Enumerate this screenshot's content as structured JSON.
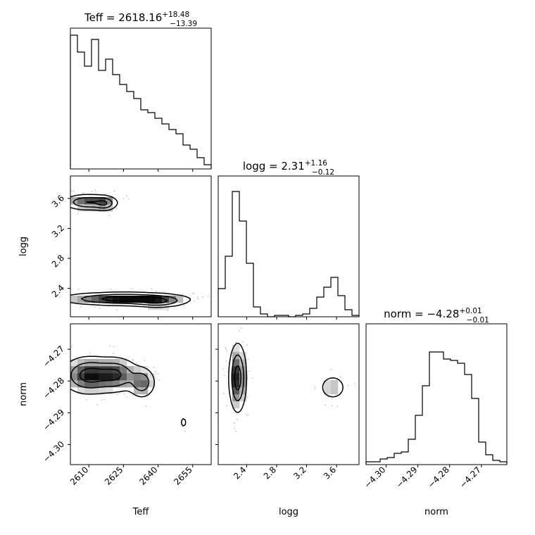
{
  "chart_data": {
    "type": "corner",
    "parameters": [
      {
        "name": "Teff",
        "title_prefix": "Teff = 2618.16",
        "err_plus": "+18.48",
        "err_minus": "−13.39",
        "range": [
          2602,
          2663
        ],
        "ticks": [
          2610,
          2625,
          2640,
          2655
        ],
        "hist_bins": [
          0.95,
          0.83,
          0.73,
          0.92,
          0.7,
          0.78,
          0.67,
          0.6,
          0.55,
          0.5,
          0.42,
          0.4,
          0.36,
          0.32,
          0.28,
          0.25,
          0.17,
          0.14,
          0.08,
          0.03
        ]
      },
      {
        "name": "logg",
        "title_prefix": "logg = 2.31",
        "err_plus": "+1.16",
        "err_minus": "−0.12",
        "range": [
          2.02,
          3.9
        ],
        "ticks": [
          2.4,
          2.8,
          3.2,
          3.6
        ],
        "hist_bins": [
          0.2,
          0.43,
          0.89,
          0.68,
          0.38,
          0.07,
          0.02,
          0.0,
          0.01,
          0.01,
          0.0,
          0.01,
          0.02,
          0.06,
          0.14,
          0.21,
          0.28,
          0.15,
          0.05,
          0.01
        ]
      },
      {
        "name": "norm",
        "title_prefix": "norm = −4.28",
        "err_plus": "+0.01",
        "err_minus": "−0.01",
        "range": [
          -4.3063,
          -4.262
        ],
        "ticks": [
          -4.3,
          -4.29,
          -4.28,
          -4.27
        ],
        "tick_labels": [
          "−4.30",
          "−4.29",
          "−4.28",
          "−4.27"
        ],
        "hist_bins": [
          0.02,
          0.02,
          0.04,
          0.05,
          0.08,
          0.09,
          0.18,
          0.35,
          0.56,
          0.8,
          0.8,
          0.75,
          0.74,
          0.72,
          0.64,
          0.47,
          0.16,
          0.07,
          0.03,
          0.02
        ]
      }
    ],
    "contour_panels": [
      {
        "x": "Teff",
        "y": "logg",
        "clusters": [
          {
            "cx": 2610,
            "cy": 3.55,
            "sx": 6,
            "sy": 0.055,
            "w": 0.8
          },
          {
            "cx": 2617,
            "cy": 3.53,
            "sx": 2.5,
            "sy": 0.05,
            "w": 0.5
          },
          {
            "cx": 2625,
            "cy": 2.26,
            "sx": 14,
            "sy": 0.045,
            "w": 1.0
          },
          {
            "cx": 2640,
            "cy": 2.22,
            "sx": 6,
            "sy": 0.04,
            "w": 0.6
          }
        ]
      },
      {
        "x": "Teff",
        "y": "norm",
        "clusters": [
          {
            "cx": 2610,
            "cy": -4.2782,
            "sx": 6,
            "sy": 0.003,
            "w": 1.0
          },
          {
            "cx": 2622,
            "cy": -4.278,
            "sx": 5,
            "sy": 0.0028,
            "w": 0.8
          },
          {
            "cx": 2633,
            "cy": -4.2805,
            "sx": 3,
            "sy": 0.0025,
            "w": 0.7
          },
          {
            "cx": 2651,
            "cy": -4.293,
            "sx": 1.2,
            "sy": 0.0015,
            "w": 0.2
          }
        ]
      },
      {
        "x": "logg",
        "y": "norm",
        "clusters": [
          {
            "cx": 2.28,
            "cy": -4.279,
            "sx": 0.06,
            "sy": 0.0055,
            "w": 1.0
          },
          {
            "cx": 3.55,
            "cy": -4.282,
            "sx": 0.1,
            "sy": 0.0022,
            "w": 0.35
          }
        ]
      }
    ]
  }
}
